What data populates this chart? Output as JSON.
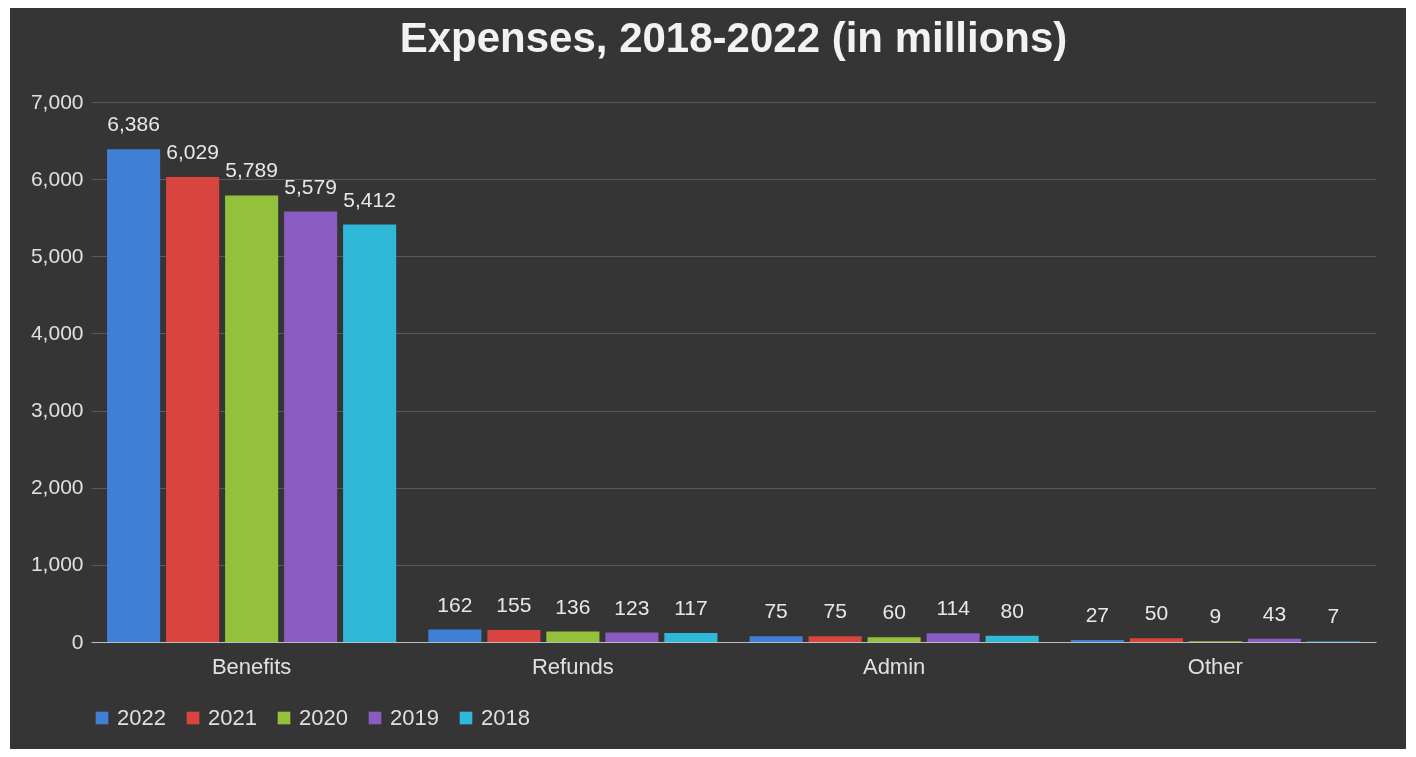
{
  "chart_data": {
    "type": "bar",
    "title": "Expenses,  2018-2022 (in millions)",
    "categories": [
      "Benefits",
      "Refunds",
      "Admin",
      "Other"
    ],
    "series": [
      {
        "name": "2022",
        "color": "#3f7fd6",
        "values": [
          6386,
          162,
          75,
          27
        ],
        "value_labels": [
          "6,386",
          "162",
          "75",
          "27"
        ]
      },
      {
        "name": "2021",
        "color": "#d9443e",
        "values": [
          6029,
          155,
          75,
          50
        ],
        "value_labels": [
          "6,029",
          "155",
          "75",
          "50"
        ]
      },
      {
        "name": "2020",
        "color": "#93c13b",
        "values": [
          5789,
          136,
          60,
          9
        ],
        "value_labels": [
          "5,789",
          "136",
          "60",
          "9"
        ]
      },
      {
        "name": "2019",
        "color": "#8a5bc0",
        "values": [
          5579,
          123,
          114,
          43
        ],
        "value_labels": [
          "5,579",
          "123",
          "114",
          "43"
        ]
      },
      {
        "name": "2018",
        "color": "#2fb8d8",
        "values": [
          5412,
          117,
          80,
          7
        ],
        "value_labels": [
          "5,412",
          "117",
          "80",
          "7"
        ]
      }
    ],
    "ylim": [
      0,
      7000
    ],
    "yticks": [
      0,
      {
        "value": 1000,
        "label": "1,000"
      },
      {
        "value": 2000,
        "label": "2,000"
      },
      {
        "value": 3000,
        "label": "3,000"
      },
      {
        "value": 4000,
        "label": "4,000"
      },
      {
        "value": 5000,
        "label": "5,000"
      },
      {
        "value": 6000,
        "label": "6,000"
      },
      {
        "value": 7000,
        "label": "7,000"
      }
    ],
    "grid": "y",
    "legend": "bottom"
  }
}
